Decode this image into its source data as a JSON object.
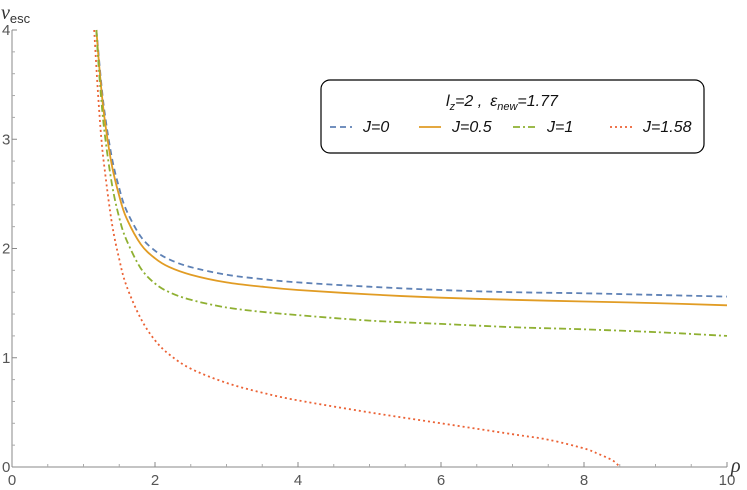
{
  "chart_data": {
    "type": "line",
    "title": "",
    "xlabel": "ρ",
    "ylabel": {
      "main": "v",
      "sub": "esc"
    },
    "xlim": [
      0,
      10
    ],
    "ylim": [
      0,
      4
    ],
    "xticks": [
      0,
      2,
      4,
      6,
      8,
      10
    ],
    "yticks": [
      0,
      1,
      2,
      3,
      4
    ],
    "grid": false,
    "legend": {
      "placement": "top-right",
      "title": {
        "lz_symbol": "l",
        "lz_sub": "z",
        "lz_value": "=2 ,",
        "eps_symbol": "ε",
        "eps_sub": "new",
        "eps_value": "=1.77"
      }
    },
    "series": [
      {
        "name": "J=0",
        "color": "#5e81b5",
        "dash": "dashed",
        "x": [
          1.18,
          1.2,
          1.25,
          1.3,
          1.4,
          1.5,
          1.6,
          1.8,
          2,
          2.2,
          2.5,
          3,
          3.5,
          4,
          5,
          6,
          7,
          8,
          9,
          10
        ],
        "y": [
          4.0,
          3.86,
          3.5,
          3.22,
          2.82,
          2.55,
          2.35,
          2.11,
          1.98,
          1.9,
          1.83,
          1.76,
          1.72,
          1.69,
          1.65,
          1.62,
          1.6,
          1.59,
          1.575,
          1.56
        ]
      },
      {
        "name": "J=0.5",
        "color": "#e19c24",
        "dash": "solid",
        "x": [
          1.18,
          1.2,
          1.25,
          1.3,
          1.4,
          1.5,
          1.6,
          1.8,
          2,
          2.2,
          2.5,
          3,
          3.5,
          4,
          5,
          6,
          7,
          8,
          9,
          10
        ],
        "y": [
          4.0,
          3.83,
          3.45,
          3.16,
          2.75,
          2.48,
          2.28,
          2.04,
          1.91,
          1.83,
          1.76,
          1.69,
          1.65,
          1.62,
          1.58,
          1.55,
          1.53,
          1.515,
          1.5,
          1.48
        ]
      },
      {
        "name": "J=1",
        "color": "#8fb032",
        "dash": "dashdot",
        "x": [
          1.18,
          1.2,
          1.25,
          1.3,
          1.4,
          1.5,
          1.6,
          1.8,
          2,
          2.2,
          2.5,
          3,
          3.5,
          4,
          5,
          6,
          7,
          8,
          9,
          10
        ],
        "y": [
          4.0,
          3.78,
          3.35,
          3.03,
          2.58,
          2.28,
          2.08,
          1.82,
          1.68,
          1.6,
          1.53,
          1.46,
          1.42,
          1.39,
          1.34,
          1.31,
          1.28,
          1.26,
          1.235,
          1.2
        ]
      },
      {
        "name": "J=1.58",
        "color": "#eb6235",
        "dash": "dotted",
        "x": [
          1.15,
          1.2,
          1.25,
          1.3,
          1.4,
          1.5,
          1.6,
          1.8,
          2,
          2.2,
          2.5,
          3,
          3.5,
          4,
          5,
          6,
          7,
          7.5,
          8,
          8.2,
          8.4,
          8.5
        ],
        "y": [
          4.0,
          3.45,
          3.0,
          2.7,
          2.22,
          1.9,
          1.66,
          1.36,
          1.16,
          1.03,
          0.9,
          0.77,
          0.68,
          0.61,
          0.5,
          0.4,
          0.3,
          0.25,
          0.17,
          0.12,
          0.06,
          0.0
        ]
      }
    ]
  }
}
